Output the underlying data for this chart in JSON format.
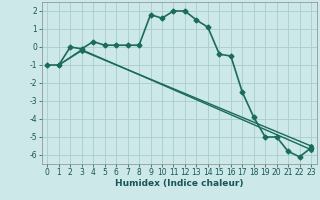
{
  "xlabel": "Humidex (Indice chaleur)",
  "bg_color": "#cce8e8",
  "grid_color": "#aacccc",
  "line_color": "#1a6b5a",
  "xlim": [
    -0.5,
    23.5
  ],
  "ylim": [
    -6.5,
    2.5
  ],
  "yticks": [
    -6,
    -5,
    -4,
    -3,
    -2,
    -1,
    0,
    1,
    2
  ],
  "xticks": [
    0,
    1,
    2,
    3,
    4,
    5,
    6,
    7,
    8,
    9,
    10,
    11,
    12,
    13,
    14,
    15,
    16,
    17,
    18,
    19,
    20,
    21,
    22,
    23
  ],
  "curve1_x": [
    0,
    1,
    2,
    3,
    4,
    5,
    6,
    7,
    8,
    9,
    10,
    11,
    12,
    13,
    14,
    15,
    16,
    17,
    18,
    19,
    20,
    21,
    22,
    23
  ],
  "curve1_y": [
    -1.0,
    -1.0,
    0.0,
    -0.1,
    0.3,
    0.1,
    0.1,
    0.1,
    0.1,
    1.8,
    1.6,
    2.0,
    2.0,
    1.5,
    1.1,
    -0.4,
    -0.5,
    -2.5,
    -3.9,
    -5.0,
    -5.0,
    -5.8,
    -6.1,
    -5.6
  ],
  "line2_x": [
    1,
    3,
    23
  ],
  "line2_y": [
    -1.0,
    -0.2,
    -5.5
  ],
  "line3_x": [
    1,
    3,
    23
  ],
  "line3_y": [
    -1.0,
    -0.15,
    -5.7
  ],
  "tick_fontsize": 5.5,
  "xlabel_fontsize": 6.5,
  "marker_size": 2.5,
  "line_width": 1.0
}
